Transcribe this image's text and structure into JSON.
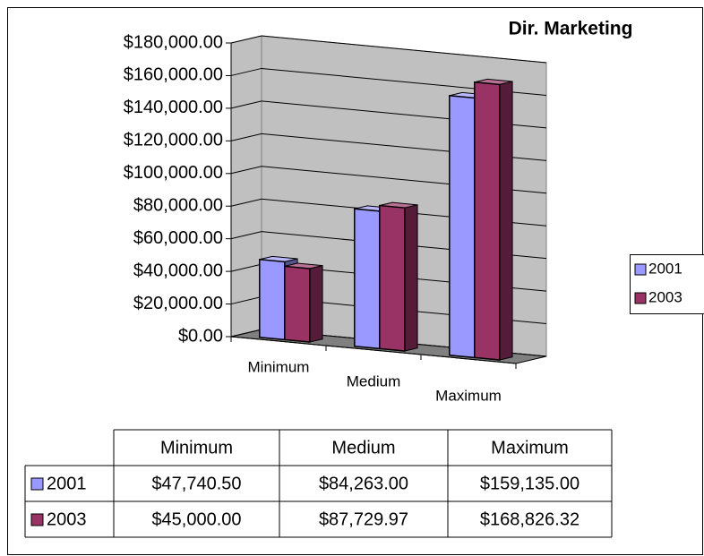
{
  "chart_data": {
    "type": "bar",
    "title": "Dir. Marketing",
    "categories": [
      "Minimum",
      "Medium",
      "Maximum"
    ],
    "series": [
      {
        "name": "2001",
        "color": "#9999ff",
        "values": [
          47740.5,
          84263,
          159135
        ],
        "value_labels": [
          "$47,740.50",
          "$84,263.00",
          "$159,135.00"
        ]
      },
      {
        "name": "2003",
        "color": "#993366",
        "values": [
          45000,
          87729.97,
          168826.32
        ],
        "value_labels": [
          "$45,000.00",
          "$87,729.97",
          "$168,826.32"
        ]
      }
    ],
    "ylim": [
      0,
      180000
    ],
    "yticks": [
      {
        "value": 0,
        "label": "$0.00"
      },
      {
        "value": 20000,
        "label": "$20,000.00"
      },
      {
        "value": 40000,
        "label": "$40,000.00"
      },
      {
        "value": 60000,
        "label": "$60,000.00"
      },
      {
        "value": 80000,
        "label": "$80,000.00"
      },
      {
        "value": 100000,
        "label": "$100,000.00"
      },
      {
        "value": 120000,
        "label": "$120,000.00"
      },
      {
        "value": 140000,
        "label": "$140,000.00"
      },
      {
        "value": 160000,
        "label": "$160,000.00"
      },
      {
        "value": 180000,
        "label": "$180,000.00"
      }
    ],
    "grid": true,
    "legend": "right",
    "data_table": true
  }
}
